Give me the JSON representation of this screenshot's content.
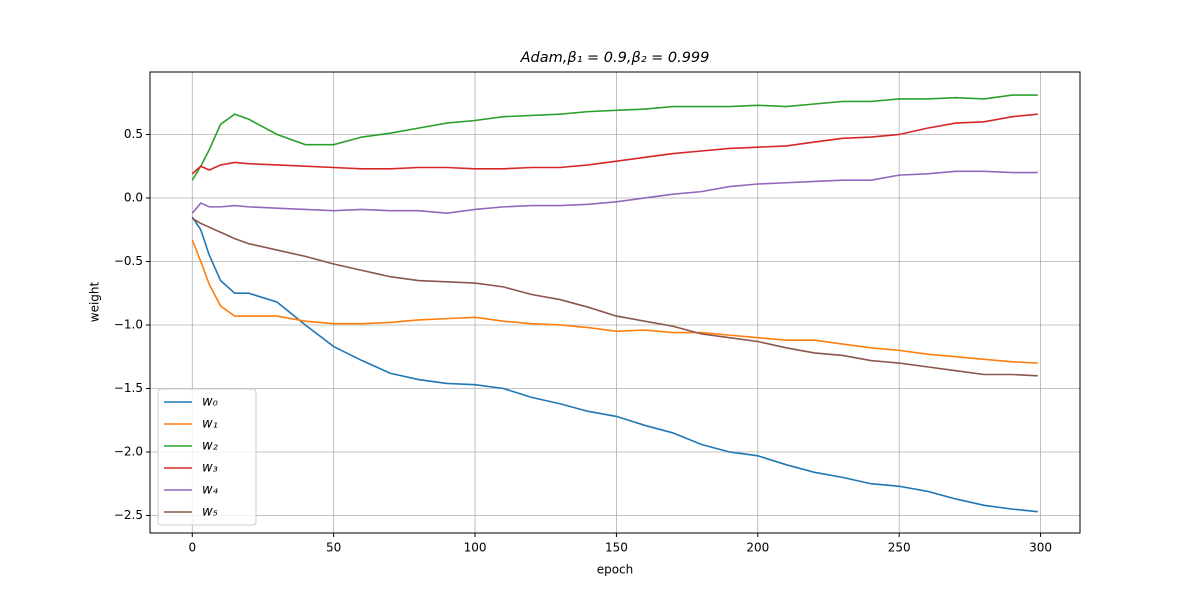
{
  "chart_data": {
    "type": "line",
    "title": "Adam,β₁ = 0.9,β₂ = 0.999",
    "xlabel": "epoch",
    "ylabel": "weight",
    "x": [
      0,
      3,
      6,
      10,
      15,
      20,
      30,
      40,
      50,
      60,
      70,
      80,
      90,
      100,
      110,
      120,
      130,
      140,
      150,
      160,
      170,
      180,
      190,
      200,
      210,
      220,
      230,
      240,
      250,
      260,
      270,
      280,
      290,
      299
    ],
    "series": [
      {
        "name": "w₀",
        "color": "#1f77b4",
        "values": [
          -0.15,
          -0.25,
          -0.45,
          -0.65,
          -0.75,
          -0.75,
          -0.82,
          -1.0,
          -1.17,
          -1.28,
          -1.38,
          -1.43,
          -1.46,
          -1.47,
          -1.5,
          -1.57,
          -1.62,
          -1.68,
          -1.72,
          -1.79,
          -1.85,
          -1.94,
          -2.0,
          -2.03,
          -2.1,
          -2.16,
          -2.2,
          -2.25,
          -2.27,
          -2.31,
          -2.37,
          -2.42,
          -2.45,
          -2.47
        ]
      },
      {
        "name": "w₁",
        "color": "#ff7f0e",
        "values": [
          -0.33,
          -0.5,
          -0.68,
          -0.85,
          -0.93,
          -0.93,
          -0.93,
          -0.97,
          -0.99,
          -0.99,
          -0.98,
          -0.96,
          -0.95,
          -0.94,
          -0.97,
          -0.99,
          -1.0,
          -1.02,
          -1.05,
          -1.04,
          -1.06,
          -1.06,
          -1.08,
          -1.1,
          -1.12,
          -1.12,
          -1.15,
          -1.18,
          -1.2,
          -1.23,
          -1.25,
          -1.27,
          -1.29,
          -1.3
        ]
      },
      {
        "name": "w₂",
        "color": "#2ca02c",
        "values": [
          0.14,
          0.25,
          0.38,
          0.58,
          0.66,
          0.62,
          0.5,
          0.42,
          0.42,
          0.48,
          0.51,
          0.55,
          0.59,
          0.61,
          0.64,
          0.65,
          0.66,
          0.68,
          0.69,
          0.7,
          0.72,
          0.72,
          0.72,
          0.73,
          0.72,
          0.74,
          0.76,
          0.76,
          0.78,
          0.78,
          0.79,
          0.78,
          0.81,
          0.81
        ]
      },
      {
        "name": "w₃",
        "color": "#d62728",
        "values": [
          0.19,
          0.25,
          0.22,
          0.26,
          0.28,
          0.27,
          0.26,
          0.25,
          0.24,
          0.23,
          0.23,
          0.24,
          0.24,
          0.23,
          0.23,
          0.24,
          0.24,
          0.26,
          0.29,
          0.32,
          0.35,
          0.37,
          0.39,
          0.4,
          0.41,
          0.44,
          0.47,
          0.48,
          0.5,
          0.55,
          0.59,
          0.6,
          0.64,
          0.66
        ]
      },
      {
        "name": "w₄",
        "color": "#9467bd",
        "values": [
          -0.12,
          -0.04,
          -0.07,
          -0.07,
          -0.06,
          -0.07,
          -0.08,
          -0.09,
          -0.1,
          -0.09,
          -0.1,
          -0.1,
          -0.12,
          -0.09,
          -0.07,
          -0.06,
          -0.06,
          -0.05,
          -0.03,
          0.0,
          0.03,
          0.05,
          0.09,
          0.11,
          0.12,
          0.13,
          0.14,
          0.14,
          0.18,
          0.19,
          0.21,
          0.21,
          0.2,
          0.2
        ]
      },
      {
        "name": "w₅",
        "color": "#8c564b",
        "values": [
          -0.16,
          -0.2,
          -0.23,
          -0.27,
          -0.32,
          -0.36,
          -0.41,
          -0.46,
          -0.52,
          -0.57,
          -0.62,
          -0.65,
          -0.66,
          -0.67,
          -0.7,
          -0.76,
          -0.8,
          -0.86,
          -0.93,
          -0.97,
          -1.01,
          -1.07,
          -1.1,
          -1.13,
          -1.18,
          -1.22,
          -1.24,
          -1.28,
          -1.3,
          -1.33,
          -1.36,
          -1.39,
          -1.39,
          -1.4
        ]
      }
    ],
    "xlim": [
      -14.95,
      313.95
    ],
    "xticks": [
      0,
      50,
      100,
      150,
      200,
      250,
      300
    ],
    "ylim": [
      -2.638,
      0.992
    ],
    "yticks": [
      {
        "value": -2.5,
        "label": "−2.5"
      },
      {
        "value": -2.0,
        "label": "−2.0"
      },
      {
        "value": -1.5,
        "label": "−1.5"
      },
      {
        "value": -1.0,
        "label": "−1.0"
      },
      {
        "value": -0.5,
        "label": "−0.5"
      },
      {
        "value": 0.0,
        "label": "0.0"
      },
      0.5
    ],
    "grid": true,
    "legend": "lower left"
  }
}
